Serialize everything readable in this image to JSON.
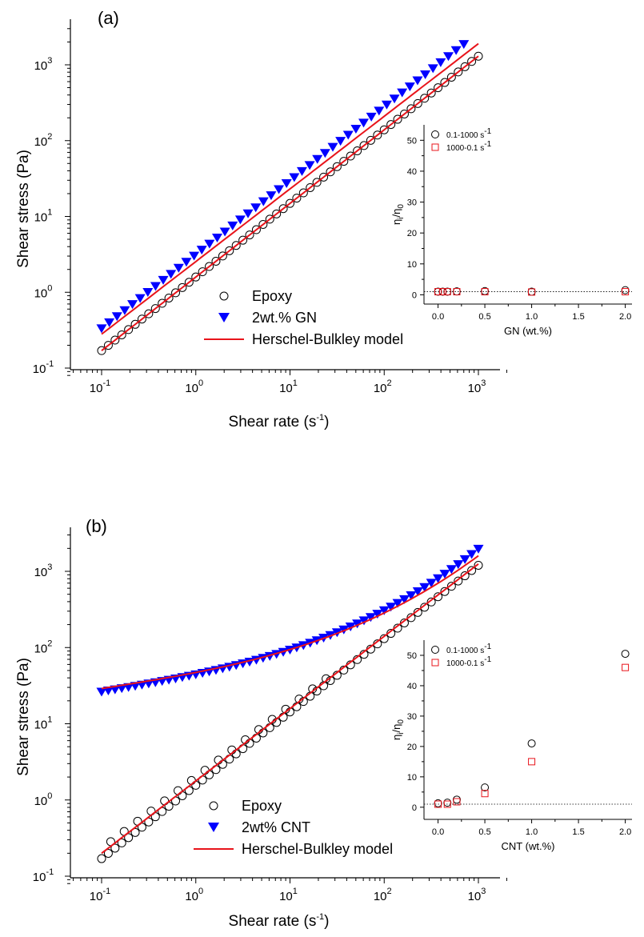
{
  "chart_data": [
    {
      "panel_label": "(a)",
      "type": "scatter",
      "xlabel": "Shear rate (s",
      "xlabel_sup": "-1",
      "xlabel_close": ")",
      "ylabel": "Shear stress (Pa)",
      "x_scale": "log",
      "y_scale": "log",
      "xlim": [
        0.05,
        2000
      ],
      "ylim": [
        0.08,
        3500
      ],
      "x_ticks": [
        "10",
        "10",
        "10",
        "10",
        "10"
      ],
      "x_tick_exps": [
        "-1",
        "0",
        "1",
        "2",
        "3"
      ],
      "y_ticks": [
        "10",
        "10",
        "10",
        "10",
        "10"
      ],
      "y_tick_exps": [
        "-1",
        "0",
        "1",
        "2",
        "3"
      ],
      "legend_position": "center",
      "series": [
        {
          "name": "Epoxy",
          "marker": "open-circle",
          "color": "#000000",
          "x_start": 0.1,
          "x_end": 1000,
          "points": 57,
          "y_start": 0.17,
          "y_end": 1300,
          "curvature": 0
        },
        {
          "name": "2wt.% GN",
          "marker": "filled-down-triangle",
          "color": "#0000ff",
          "x_start": 0.1,
          "x_end": 700,
          "points": 48,
          "y_start": 0.33,
          "y_end": 1850,
          "curvature": 0
        },
        {
          "name": "Herschel-Bulkley model",
          "marker": "line",
          "color": "#e8141b",
          "fits": [
            {
              "x_start": 0.1,
              "x_end": 1000,
              "y_start": 0.17,
              "y_end": 1300,
              "curvature": 0
            },
            {
              "x_start": 0.1,
              "x_end": 1000,
              "y_start": 0.28,
              "y_end": 1900,
              "curvature": 0
            }
          ]
        }
      ],
      "inset": {
        "xlabel": "GN (wt.%)",
        "ylabel": "η",
        "ylabel_sub1": "i",
        "ylabel_mid": "/η",
        "ylabel_sub2": "0",
        "xlim": [
          -0.15,
          2.2
        ],
        "ylim": [
          -3,
          55
        ],
        "x_ticks": [
          "0.0",
          "0.5",
          "1.0",
          "1.5",
          "2.0"
        ],
        "y_ticks": [
          "0",
          "10",
          "20",
          "30",
          "40",
          "50"
        ],
        "reference_line": 1,
        "series": [
          {
            "name": "0.1-1000 s",
            "name_sup": "-1",
            "marker": "open-circle",
            "color": "#000000",
            "x": [
              0,
              0.05,
              0.1,
              0.2,
              0.5,
              1.0,
              2.0
            ],
            "y": [
              1.0,
              1.0,
              1.0,
              1.1,
              1.2,
              1.0,
              1.5
            ]
          },
          {
            "name": "1000-0.1 s",
            "name_sup": "-1",
            "marker": "open-square",
            "color": "#e8141b",
            "x": [
              0,
              0.05,
              0.1,
              0.2,
              0.5,
              1.0,
              2.0
            ],
            "y": [
              1.0,
              1.0,
              1.0,
              1.0,
              1.0,
              0.9,
              1.0
            ]
          }
        ]
      }
    },
    {
      "panel_label": "(b)",
      "type": "scatter",
      "xlabel": "Shear rate (s",
      "xlabel_sup": "-1",
      "xlabel_close": ")",
      "ylabel": "Shear stress (Pa)",
      "x_scale": "log",
      "y_scale": "log",
      "xlim": [
        0.05,
        2000
      ],
      "ylim": [
        0.08,
        3500
      ],
      "x_ticks": [
        "10",
        "10",
        "10",
        "10",
        "10"
      ],
      "x_tick_exps": [
        "-1",
        "0",
        "1",
        "2",
        "3"
      ],
      "y_ticks": [
        "10",
        "10",
        "10",
        "10",
        "10"
      ],
      "y_tick_exps": [
        "-1",
        "0",
        "1",
        "2",
        "3"
      ],
      "legend_position": "bottom-center",
      "series": [
        {
          "name": "Epoxy",
          "marker": "open-circle",
          "color": "#000000",
          "x_start": 0.1,
          "x_end": 1000,
          "points": 57,
          "y_start": 0.17,
          "y_end": 1200,
          "curvature": 0,
          "dual_branch": 0.3
        },
        {
          "name": "2wt% CNT",
          "marker": "filled-down-triangle",
          "color": "#0000ff",
          "x_start": 0.1,
          "x_end": 1000,
          "points": 57,
          "y_start": 26,
          "y_end": 1950,
          "curvature": 0.55
        },
        {
          "name": "Herschel-Bulkley model",
          "marker": "line",
          "color": "#e8141b",
          "fits": [
            {
              "x_start": 0.1,
              "x_end": 1000,
              "y_start": 0.2,
              "y_end": 1250,
              "curvature": 0
            },
            {
              "x_start": 0.1,
              "x_end": 1000,
              "y_start": 29,
              "y_end": 1600,
              "curvature": 0.55
            }
          ]
        }
      ],
      "inset": {
        "xlabel": "CNT (wt.%)",
        "ylabel": "η",
        "ylabel_sub1": "i",
        "ylabel_mid": "/η",
        "ylabel_sub2": "0",
        "xlim": [
          -0.15,
          2.2
        ],
        "ylim": [
          -4,
          55
        ],
        "x_ticks": [
          "0.0",
          "0.5",
          "1.0",
          "1.5",
          "2.0"
        ],
        "y_ticks": [
          "0",
          "10",
          "20",
          "30",
          "40",
          "50"
        ],
        "reference_line": 1,
        "series": [
          {
            "name": "0.1-1000 s",
            "name_sup": "-1",
            "marker": "open-circle",
            "color": "#000000",
            "x": [
              0,
              0.1,
              0.2,
              0.5,
              1.0,
              2.0
            ],
            "y": [
              1.3,
              1.5,
              2.5,
              6.5,
              21,
              50.5
            ]
          },
          {
            "name": "1000-0.1 s",
            "name_sup": "-1",
            "marker": "open-square",
            "color": "#e8141b",
            "x": [
              0,
              0.1,
              0.2,
              0.5,
              1.0,
              2.0
            ],
            "y": [
              1.0,
              1.0,
              1.8,
              4.5,
              15,
              46
            ]
          }
        ]
      }
    }
  ]
}
